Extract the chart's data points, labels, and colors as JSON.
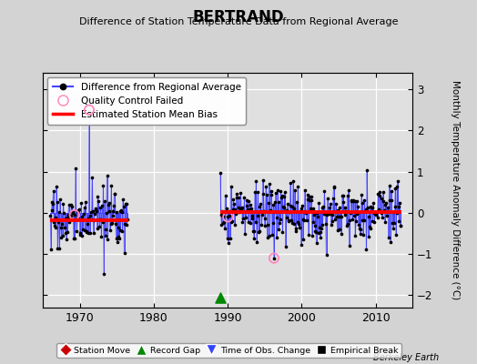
{
  "title": "BERTRAND",
  "subtitle": "Difference of Station Temperature Data from Regional Average",
  "ylabel": "Monthly Temperature Anomaly Difference (°C)",
  "xlim": [
    1965.0,
    2015.0
  ],
  "ylim": [
    -2.3,
    3.4
  ],
  "yticks": [
    -2,
    -1,
    0,
    1,
    2,
    3
  ],
  "xticks": [
    1970,
    1980,
    1990,
    2000,
    2010
  ],
  "bg_color": "#d3d3d3",
  "plot_bg_color": "#e0e0e0",
  "grid_color": "#ffffff",
  "line_color": "#4444ff",
  "dot_color": "#000000",
  "bias_color": "#ff0000",
  "qc_color": "#ff88bb",
  "segment1_bias": -0.18,
  "segment2_bias": 0.02,
  "t1_start": 1966.0,
  "t1_end": 1976.5,
  "t2_start": 1989.0,
  "t2_end": 2013.5,
  "spike1_x": 1971.25,
  "spike1_y": 2.5,
  "qc1_x": 1969.25,
  "qc1_y": -0.05,
  "qc2_x": 1996.25,
  "qc2_y": -1.1,
  "qc3_x": 1990.0,
  "qc3_y": -0.1,
  "record_gap_x": 1989.0,
  "record_gap_y": -2.05,
  "footnote": "Berkeley Earth",
  "seed": 17
}
